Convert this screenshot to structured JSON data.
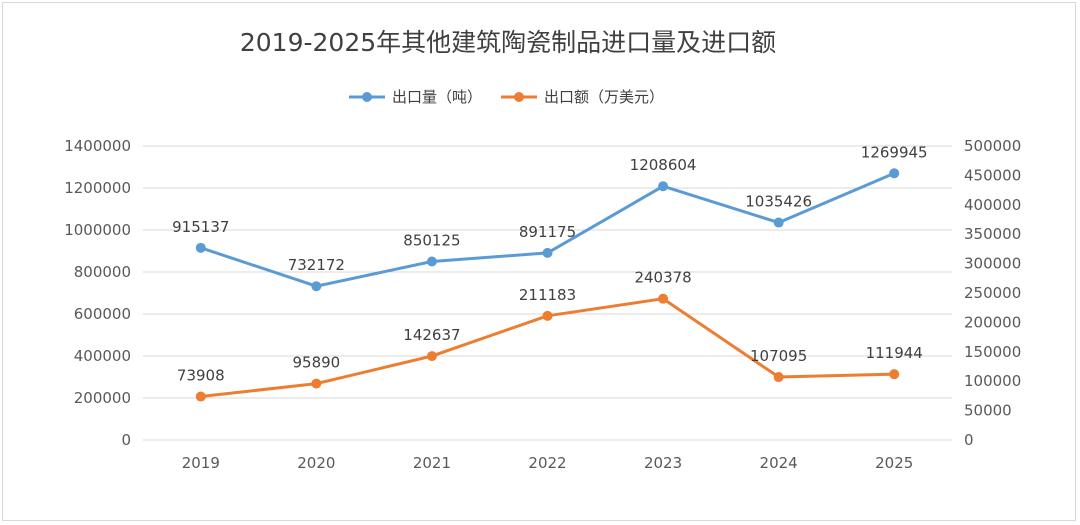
{
  "chart_data": {
    "type": "line",
    "title": "2019-2025年其他建筑陶瓷制品进口量及进口额",
    "categories": [
      "2019",
      "2020",
      "2021",
      "2022",
      "2023",
      "2024",
      "2025"
    ],
    "series": [
      {
        "name": "出口量（吨）",
        "axis": "left",
        "color": "#5b9bd5",
        "values": [
          915137,
          732172,
          850125,
          891175,
          1208604,
          1035426,
          1269945
        ]
      },
      {
        "name": "出口额（万美元）",
        "axis": "right",
        "color": "#ed7d31",
        "values": [
          73908,
          95890,
          142637,
          211183,
          240378,
          107095,
          111944
        ]
      }
    ],
    "y_left": {
      "min": 0,
      "max": 1400000,
      "ticks": [
        0,
        200000,
        400000,
        600000,
        800000,
        1000000,
        1200000,
        1400000
      ]
    },
    "y_right": {
      "min": 0,
      "max": 500000,
      "ticks": [
        0,
        50000,
        100000,
        150000,
        200000,
        250000,
        300000,
        350000,
        400000,
        450000,
        500000
      ]
    },
    "grid": true,
    "legend": "top-center"
  }
}
